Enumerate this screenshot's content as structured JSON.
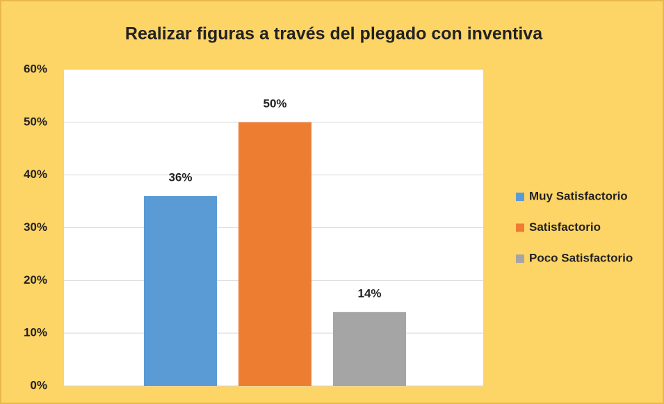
{
  "chart_data": {
    "type": "bar",
    "title": "Realizar figuras a través del plegado con inventiva",
    "categories": [
      null
    ],
    "series": [
      {
        "name": "Muy Satisfactorio",
        "color": "#5b9bd5",
        "values": [
          36
        ],
        "value_labels": [
          "36%"
        ]
      },
      {
        "name": "Satisfactorio",
        "color": "#ed7d31",
        "values": [
          50
        ],
        "value_labels": [
          "50%"
        ]
      },
      {
        "name": "Poco Satisfactorio",
        "color": "#a5a5a5",
        "values": [
          14
        ],
        "value_labels": [
          "14%"
        ]
      }
    ],
    "ylim": [
      0,
      60
    ],
    "yticks": [
      {
        "value": 0,
        "label": "0%"
      },
      {
        "value": 10,
        "label": "10%"
      },
      {
        "value": 20,
        "label": "20%"
      },
      {
        "value": 30,
        "label": "30%"
      },
      {
        "value": 40,
        "label": "40%"
      },
      {
        "value": 50,
        "label": "50%"
      },
      {
        "value": 60,
        "label": "60%"
      }
    ],
    "grid": true,
    "legend": "right"
  }
}
